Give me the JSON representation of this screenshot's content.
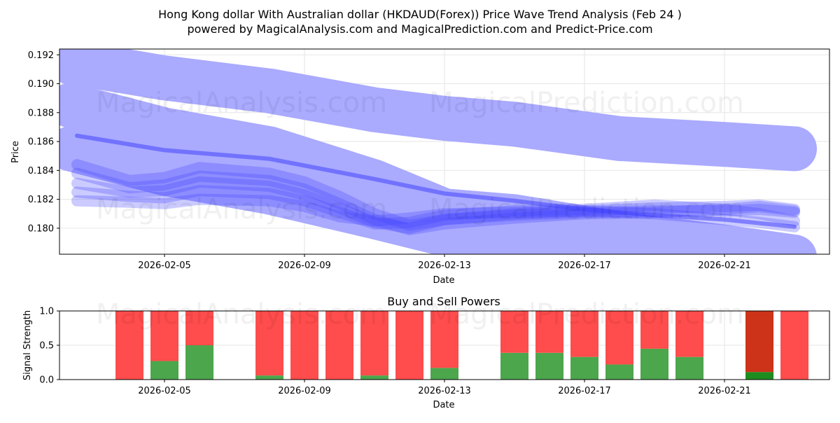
{
  "title_line1": "Hong Kong dollar With Australian dollar (HKDAUD(Forex)) Price Wave Trend Analysis (Feb 24 )",
  "title_line2": "powered by MagicalAnalysis.com and MagicalPrediction.com and Predict-Price.com",
  "watermark_left": "MagicalAnalysis.com",
  "watermark_right": "MagicalPrediction.com",
  "colors": {
    "band": "#aaaaff",
    "trend": "#4444ff",
    "sell": "#ff4c4c",
    "buy": "#4ca64c",
    "sell_dark": "#cc3318",
    "buy_dark": "#1f8c1f",
    "grid": "#e6e6e6"
  },
  "chart_data": [
    {
      "type": "line",
      "title": "",
      "xlabel": "Date",
      "ylabel": "Price",
      "x_tick_labels": [
        "2026-02-05",
        "2026-02-09",
        "2026-02-13",
        "2026-02-17",
        "2026-02-21"
      ],
      "x_tick_days": [
        5,
        9,
        13,
        17,
        21
      ],
      "y_tick_labels": [
        "0.180",
        "0.182",
        "0.184",
        "0.186",
        "0.188",
        "0.190",
        "0.192"
      ],
      "y_ticks": [
        0.18,
        0.182,
        0.184,
        0.186,
        0.188,
        0.19,
        0.192
      ],
      "xlim": [
        2.0,
        24.0
      ],
      "ylim": [
        0.1782,
        0.1924
      ],
      "grid": true,
      "bands": [
        {
          "name": "upper-wave-band",
          "x": [
            2.3,
            5,
            8,
            11,
            13,
            15,
            18,
            21,
            23
          ],
          "y": [
            0.1915,
            0.1904,
            0.1895,
            0.1882,
            0.1876,
            0.1872,
            0.1862,
            0.1858,
            0.1855
          ]
        },
        {
          "name": "middle-wave-band",
          "x": [
            2.3,
            5,
            8,
            11,
            13,
            15,
            18,
            21,
            23
          ],
          "y": [
            0.1885,
            0.1868,
            0.1855,
            0.1832,
            0.1812,
            0.1808,
            0.1796,
            0.1787,
            0.178
          ]
        },
        {
          "name": "lower-wave-band",
          "x": [
            2.3,
            5,
            8,
            11,
            13,
            15,
            18,
            21,
            23
          ],
          "y": [
            0.1855,
            0.1838,
            0.1825,
            0.1808,
            0.1796,
            0.179,
            0.1778,
            0.1772,
            0.1768
          ]
        }
      ],
      "series": [
        {
          "name": "trend-1",
          "x": [
            2.5,
            4,
            5,
            6,
            8,
            9,
            10,
            11,
            12,
            13,
            15,
            17,
            19,
            21,
            22,
            23
          ],
          "y": [
            0.1844,
            0.1833,
            0.1835,
            0.1842,
            0.1838,
            0.1832,
            0.1822,
            0.181,
            0.1802,
            0.1806,
            0.1809,
            0.1811,
            0.1812,
            0.1812,
            0.1813,
            0.1811
          ]
        },
        {
          "name": "trend-2",
          "x": [
            2.5,
            4,
            5,
            6,
            8,
            9,
            10,
            11,
            12,
            13,
            15,
            17,
            19,
            21,
            22,
            23
          ],
          "y": [
            0.1838,
            0.1828,
            0.183,
            0.1836,
            0.1833,
            0.1827,
            0.1817,
            0.1806,
            0.1799,
            0.1803,
            0.1807,
            0.181,
            0.1811,
            0.1813,
            0.1815,
            0.1812
          ]
        },
        {
          "name": "trend-3",
          "x": [
            2.5,
            4,
            5,
            6,
            8,
            9,
            10,
            11,
            12,
            13,
            15,
            17,
            19,
            21,
            22,
            23
          ],
          "y": [
            0.1831,
            0.1825,
            0.1826,
            0.1832,
            0.1829,
            0.1823,
            0.1814,
            0.1804,
            0.18,
            0.1806,
            0.181,
            0.1812,
            0.1814,
            0.1815,
            0.1816,
            0.1813
          ]
        },
        {
          "name": "trend-4",
          "x": [
            2.5,
            4,
            5,
            6,
            8,
            9,
            10,
            11,
            12,
            13,
            15,
            17,
            19,
            21,
            22,
            23
          ],
          "y": [
            0.1825,
            0.1822,
            0.1821,
            0.1826,
            0.1824,
            0.1819,
            0.1811,
            0.1803,
            0.1804,
            0.1809,
            0.1812,
            0.1813,
            0.1816,
            0.1813,
            0.181,
            0.1805
          ]
        },
        {
          "name": "trend-5",
          "x": [
            2.5,
            4,
            5,
            6,
            8,
            9,
            10,
            11,
            12,
            13,
            15,
            17,
            19,
            21,
            22,
            23
          ],
          "y": [
            0.1819,
            0.1818,
            0.1817,
            0.182,
            0.1819,
            0.1815,
            0.1808,
            0.1805,
            0.1807,
            0.181,
            0.1811,
            0.1812,
            0.181,
            0.1806,
            0.1804,
            0.1801
          ]
        },
        {
          "name": "diagonal-trend",
          "x": [
            2.5,
            5,
            8,
            11,
            13,
            15,
            17,
            19,
            21,
            23
          ],
          "y": [
            0.1864,
            0.1854,
            0.1848,
            0.1834,
            0.1824,
            0.1819,
            0.1813,
            0.1809,
            0.1806,
            0.1801
          ]
        }
      ]
    },
    {
      "type": "bar",
      "title": "Buy and Sell Powers",
      "xlabel": "Date",
      "ylabel": "Signal Strength",
      "x_tick_labels": [
        "2026-02-05",
        "2026-02-09",
        "2026-02-13",
        "2026-02-17",
        "2026-02-21"
      ],
      "x_tick_days": [
        5,
        9,
        13,
        17,
        21
      ],
      "y_tick_labels": [
        "0.0",
        "0.5",
        "1.0"
      ],
      "y_ticks": [
        0.0,
        0.5,
        1.0
      ],
      "xlim": [
        2.0,
        24.0
      ],
      "ylim": [
        0.0,
        1.0
      ],
      "grid": true,
      "days": [
        4,
        5,
        6,
        8,
        9,
        10,
        11,
        12,
        13,
        15,
        16,
        17,
        18,
        19,
        20,
        22,
        23
      ],
      "buy": [
        0.0,
        0.27,
        0.5,
        0.06,
        0.0,
        0.0,
        0.06,
        0.0,
        0.17,
        0.39,
        0.39,
        0.33,
        0.22,
        0.45,
        0.33,
        0.11,
        0.0
      ],
      "sell": [
        1.0,
        0.73,
        0.5,
        0.94,
        1.0,
        1.0,
        0.94,
        1.0,
        0.83,
        0.61,
        0.61,
        0.67,
        0.78,
        0.55,
        0.67,
        0.89,
        1.0
      ],
      "highlight_day": 22
    }
  ]
}
